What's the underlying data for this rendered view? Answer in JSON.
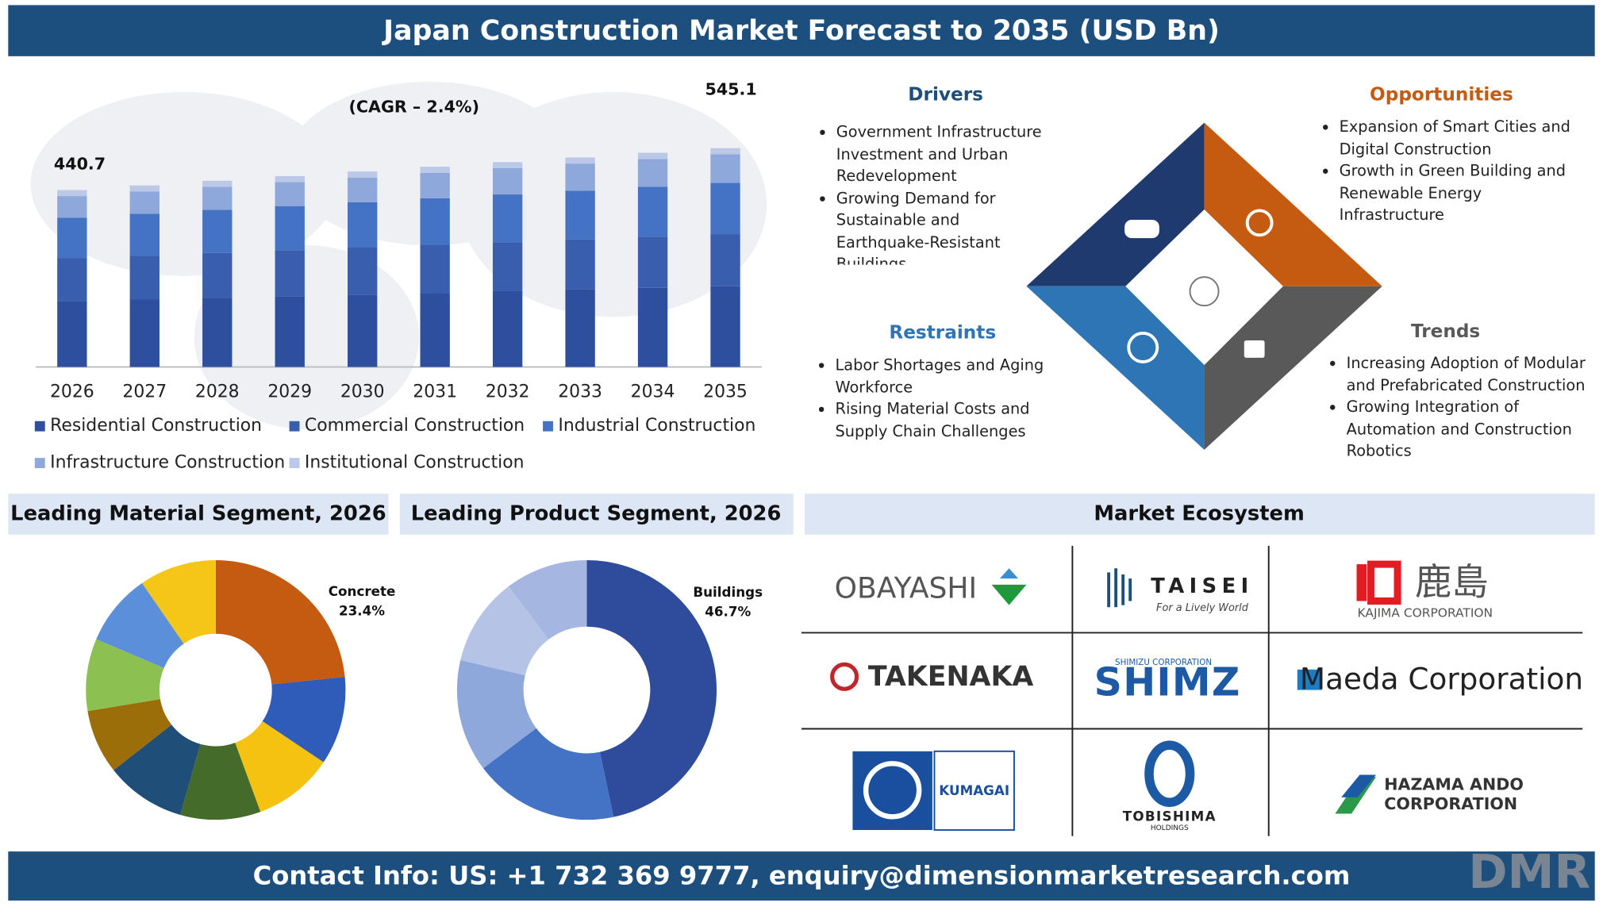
{
  "header": {
    "title": "Japan Construction Market Forecast to 2035 (USD Bn)"
  },
  "chart_data": [
    {
      "type": "bar",
      "stacked": true,
      "annotations": [
        "(CAGR – 2.4%)",
        "440.7",
        "545.1"
      ],
      "categories": [
        "2026",
        "2027",
        "2028",
        "2029",
        "2030",
        "2031",
        "2032",
        "2033",
        "2034",
        "2035"
      ],
      "ylim": [
        0,
        600
      ],
      "series": [
        {
          "name": "Residential Construction",
          "color": "#2d4f9e",
          "values": [
            163.8,
            168.0,
            172.1,
            176.3,
            180.4,
            184.6,
            188.8,
            192.9,
            197.1,
            201.2
          ]
        },
        {
          "name": "Commercial Construction",
          "color": "#3a5eae",
          "values": [
            107.0,
            109.5,
            112.1,
            114.6,
            117.1,
            119.7,
            122.2,
            124.7,
            127.3,
            129.8
          ]
        },
        {
          "name": "Industrial Construction",
          "color": "#4472c4",
          "values": [
            101.3,
            104.2,
            107.1,
            110.0,
            112.9,
            115.9,
            118.8,
            121.7,
            124.6,
            127.5
          ]
        },
        {
          "name": "Infrastructure Construction",
          "color": "#8fa8dc",
          "values": [
            53.7,
            55.7,
            57.6,
            59.6,
            61.6,
            63.5,
            65.5,
            67.5,
            69.4,
            71.4
          ]
        },
        {
          "name": "Institutional Construction",
          "color": "#bcc8e8",
          "values": [
            14.9,
            14.9,
            15.0,
            15.0,
            15.0,
            15.1,
            15.1,
            15.1,
            15.2,
            15.2
          ]
        }
      ]
    },
    {
      "type": "donut",
      "title": "Leading Material Segment, 2026",
      "categories": [
        "Concrete",
        null,
        null,
        null,
        null,
        null,
        null,
        null,
        null
      ],
      "values": [
        23.4,
        11,
        10,
        10,
        10,
        8,
        9,
        9,
        9.6
      ],
      "value_labels": [
        "23.4%",
        null,
        null,
        null,
        null,
        null,
        null,
        null,
        null
      ],
      "colors": [
        "#c55a11",
        "#2e5cb8",
        "#f5c211",
        "#456b2a",
        "#1f4e79",
        "#9c6e0a",
        "#8cc152",
        "#5b8fd9",
        "#f5c518"
      ]
    },
    {
      "type": "donut",
      "title": "Leading Product Segment, 2026",
      "categories": [
        "Buildings",
        null,
        null,
        null,
        null
      ],
      "values": [
        46.7,
        18,
        14,
        11,
        10.3
      ],
      "value_labels": [
        "46.7%",
        null,
        null,
        null,
        null
      ],
      "colors": [
        "#2f4c9c",
        "#4472c4",
        "#8fa8dc",
        "#b4c3e6",
        "#a5b6e0"
      ]
    }
  ],
  "quadrants": {
    "drivers": {
      "title": "Drivers",
      "items": [
        "Government Infrastructure Investment and Urban Redevelopment",
        "Growing Demand for Sustainable and Earthquake-Resistant Buildings"
      ]
    },
    "opportunities": {
      "title": "Opportunities",
      "items": [
        "Expansion of Smart Cities and Digital Construction",
        "Growth in Green Building and Renewable Energy Infrastructure"
      ]
    },
    "restraints": {
      "title": "Restraints",
      "items": [
        "Labor Shortages and Aging Workforce",
        "Rising Material Costs and Supply Chain Challenges"
      ]
    },
    "trends": {
      "title": "Trends",
      "items": [
        "Increasing Adoption of Modular and Prefabricated Construction",
        "Growing Integration of Automation and Construction Robotics"
      ]
    }
  },
  "ecosystem": {
    "title": "Market Ecosystem",
    "companies": [
      {
        "name": "OBAYASHI"
      },
      {
        "name": "TAISEI",
        "tagline": "For a Lively World"
      },
      {
        "name": "鹿島",
        "sub": "KAJIMA CORPORATION"
      },
      {
        "name": "TAKENAKA"
      },
      {
        "name": "SHIMZ",
        "sub": "SHIMIZU CORPORATION"
      },
      {
        "name": "Maeda Corporation"
      },
      {
        "name": "KUMAGAI"
      },
      {
        "name": "TOBISHIMA",
        "sub": "HOLDINGS"
      },
      {
        "name": "HAZAMA ANDO",
        "sub": "CORPORATION"
      }
    ]
  },
  "footer": {
    "contact": "Contact Info: US: +1 732 369 9777, enquiry@dimensionmarketresearch.com",
    "logo": "DMR"
  }
}
